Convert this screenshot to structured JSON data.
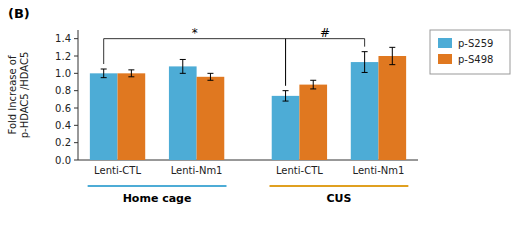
{
  "chart_data": {
    "type": "bar",
    "title": "(B)",
    "y_label": "Fold Increase of\np-HDAC5 /HDAC5",
    "categories": [
      "Lenti-CTL",
      "Lenti-Nm1",
      "Lenti-CTL",
      "Lenti-Nm1"
    ],
    "series": [
      {
        "name": "p-S259",
        "color": "#4dacd6",
        "values": [
          1.0,
          1.08,
          0.74,
          1.13
        ],
        "errors": [
          0.05,
          0.08,
          0.06,
          0.12
        ]
      },
      {
        "name": "p-S498",
        "color": "#e07820",
        "values": [
          1.0,
          0.96,
          0.87,
          1.2
        ],
        "errors": [
          0.04,
          0.04,
          0.05,
          0.1
        ]
      }
    ],
    "ylim": [
      0,
      1.5
    ],
    "yticks": [
      {
        "value": 0,
        "label": "0.0"
      },
      0.2,
      0.4,
      0.6,
      0.8,
      {
        "value": 1.0,
        "label": "1.0"
      },
      1.2,
      1.4
    ],
    "legend": "upper right",
    "groups": [
      {
        "label": "Home cage",
        "color": "#4dacd6",
        "categories": [
          0,
          1
        ]
      },
      {
        "label": "CUS",
        "color": "#e0a020",
        "categories": [
          2,
          3
        ]
      }
    ],
    "annotations": [
      {
        "text": "*",
        "series": 0,
        "between": [
          0,
          2
        ],
        "y": 1.4
      },
      {
        "text": "#",
        "series": 0,
        "between": [
          2,
          3
        ],
        "y": 1.4
      }
    ]
  }
}
